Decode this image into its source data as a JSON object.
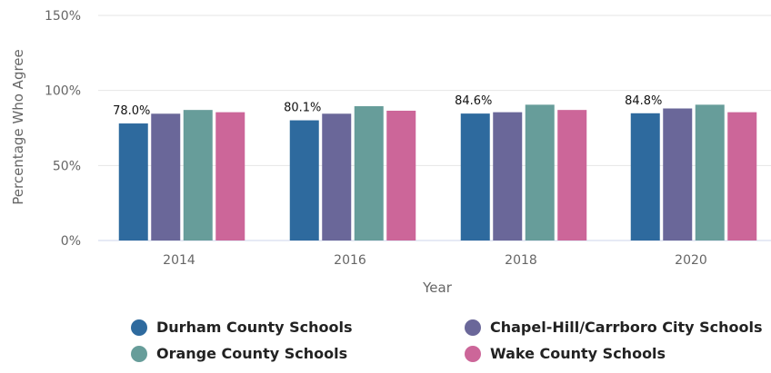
{
  "chart_data": {
    "type": "bar",
    "title": "",
    "xlabel": "Year",
    "ylabel": "Percentage Who Agree",
    "categories": [
      "2014",
      "2016",
      "2018",
      "2020"
    ],
    "ylim": [
      0,
      150
    ],
    "yticks": [
      "0%",
      "50%",
      "100%",
      "150%"
    ],
    "y_tick_values": [
      0,
      50,
      100,
      150
    ],
    "grid": true,
    "legend_position": "bottom",
    "series": [
      {
        "name": "Durham County Schools",
        "color": "#2e6a9e",
        "values": [
          78.0,
          80.1,
          84.6,
          84.8
        ],
        "labels": [
          "78.0%",
          "80.1%",
          "84.6%",
          "84.8%"
        ]
      },
      {
        "name": "Chapel-Hill/Carrboro City Schools",
        "color": "#6a6799",
        "values": [
          84.5,
          84.5,
          85.5,
          88.0
        ]
      },
      {
        "name": "Orange County Schools",
        "color": "#679d9a",
        "values": [
          87.0,
          89.5,
          90.5,
          90.5
        ]
      },
      {
        "name": "Wake County Schools",
        "color": "#cc6699",
        "values": [
          85.5,
          86.5,
          87.0,
          85.5
        ]
      }
    ]
  }
}
